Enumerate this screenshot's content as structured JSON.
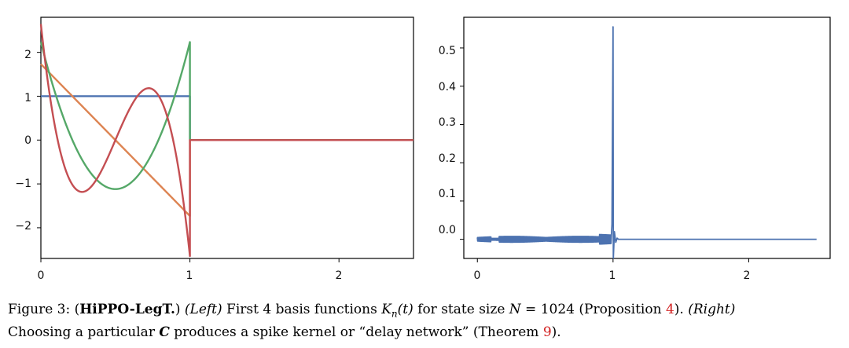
{
  "chart_data": [
    {
      "type": "line",
      "xlim": [
        0,
        2.5
      ],
      "ylim": [
        -2.7,
        2.8
      ],
      "xticks": [
        "0",
        "1",
        "2"
      ],
      "yticks": [
        "−2",
        "−1",
        "0",
        "1",
        "2"
      ],
      "grid": false,
      "series": [
        {
          "color": "#4c72b0",
          "x": [
            0,
            1,
            1,
            2.5
          ],
          "values": [
            1,
            1,
            0,
            0
          ]
        },
        {
          "color": "#dd8452",
          "x": [
            0,
            1,
            1,
            2.5
          ],
          "values": [
            1.732,
            -1.732,
            0,
            0
          ]
        },
        {
          "color": "#55a868",
          "x": [
            0,
            0.2,
            0.5,
            0.8,
            1,
            1,
            2.5
          ],
          "values": [
            2.236,
            0.279,
            -1.118,
            0.279,
            2.236,
            0,
            0
          ]
        },
        {
          "color": "#c44e52",
          "x": [
            0,
            0.276,
            0.5,
            0.724,
            1,
            1,
            2.5
          ],
          "values": [
            2.646,
            -1.183,
            0,
            1.183,
            -2.646,
            0,
            0
          ]
        }
      ]
    },
    {
      "type": "line",
      "xlim": [
        -0.1,
        2.6
      ],
      "ylim": [
        -0.05,
        0.58
      ],
      "xticks": [
        "0",
        "1",
        "2"
      ],
      "yticks": [
        "0.0",
        "0.1",
        "0.2",
        "0.3",
        "0.4",
        "0.5"
      ],
      "grid": false,
      "series": [
        {
          "color": "#4c72b0",
          "peak_x": 1.0,
          "peak_y": 0.555,
          "min_y": -0.05,
          "end_x": 2.5
        }
      ]
    }
  ],
  "caption": {
    "figure_label": "Figure 3:",
    "open_paren": "(",
    "title": "HiPPO-LegT.",
    "close_paren": ")",
    "left_label": "(Left)",
    "text1": " First 4 basis functions ",
    "kn_symbol": "K",
    "kn_sub": "n",
    "kn_arg": "(t)",
    "text2": " for state size ",
    "n_symbol": "N",
    "n_value": " = 1024 (Proposition ",
    "ref1": "4",
    "text3": "). ",
    "right_label": "(Right)",
    "line2_a": "Choosing a particular ",
    "c_symbol": "C",
    "line2_b": " produces a spike kernel or “delay network” (Theorem ",
    "ref2": "9",
    "line2_c": ")."
  }
}
